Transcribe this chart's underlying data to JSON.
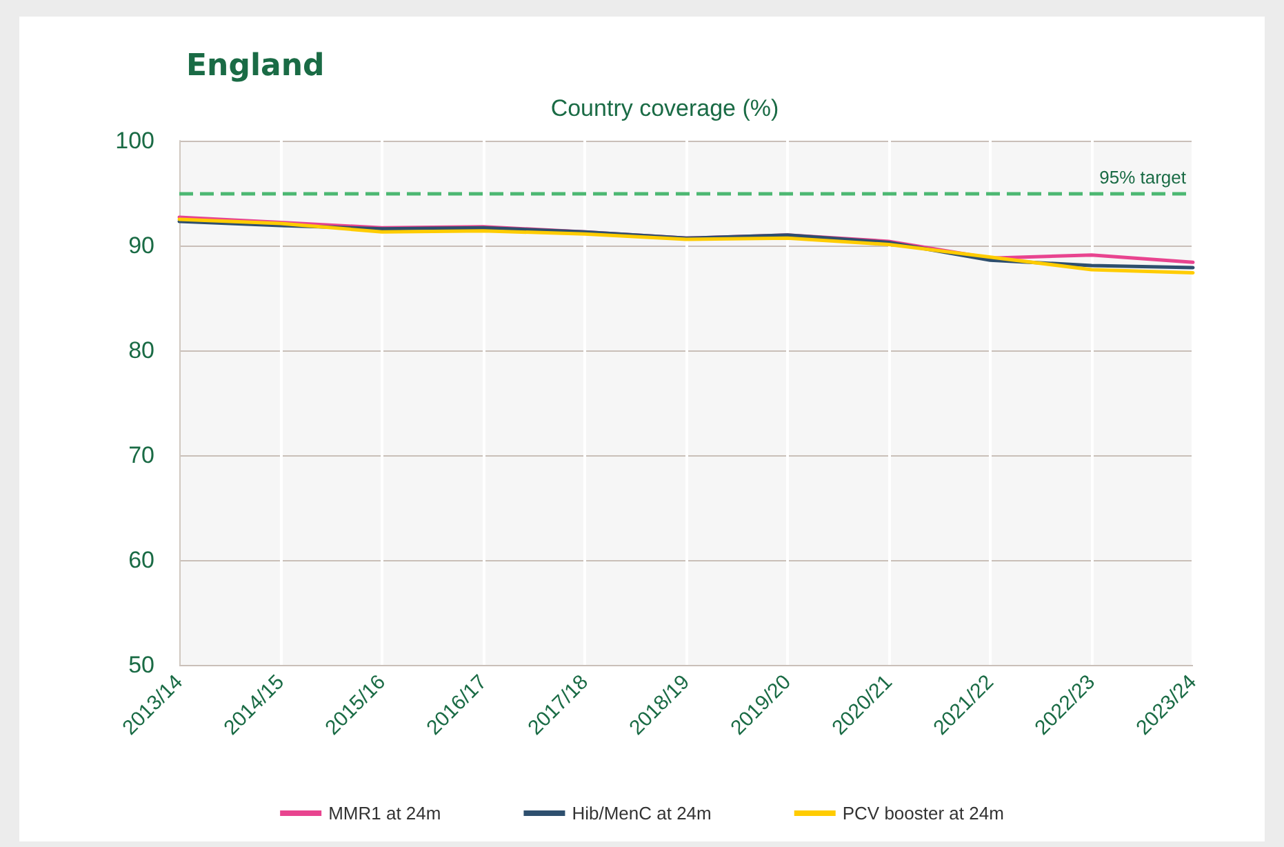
{
  "chart_data": {
    "type": "line",
    "title": "England",
    "subtitle": "Country coverage (%)",
    "categories": [
      "2013/14",
      "2014/15",
      "2015/16",
      "2016/17",
      "2017/18",
      "2018/19",
      "2019/20",
      "2020/21",
      "2021/22",
      "2022/23",
      "2023/24"
    ],
    "series": [
      {
        "name": "MMR1 at 24m",
        "color": "#e8448f",
        "values": [
          92.7,
          92.2,
          91.7,
          91.8,
          91.3,
          90.7,
          91.0,
          90.4,
          88.8,
          89.1,
          88.4
        ]
      },
      {
        "name": "Hib/MenC at 24m",
        "color": "#2e4f6e",
        "values": [
          92.3,
          91.9,
          91.6,
          91.7,
          91.3,
          90.7,
          91.0,
          90.3,
          88.6,
          88.1,
          87.9
        ]
      },
      {
        "name": "PCV booster at 24m",
        "color": "#ffcc00",
        "values": [
          92.5,
          92.1,
          91.3,
          91.4,
          91.1,
          90.6,
          90.7,
          90.1,
          88.9,
          87.7,
          87.4
        ]
      }
    ],
    "ylim": [
      50,
      100
    ],
    "yticks": [
      50,
      60,
      70,
      80,
      90,
      100
    ],
    "grid": true,
    "legend": "bottom",
    "marker": "none",
    "line_style": "solid",
    "ref_lines": [
      {
        "axis": "y",
        "value": 95,
        "label": "95% target",
        "color": "#4cb872",
        "line_style": "dashed"
      }
    ]
  }
}
